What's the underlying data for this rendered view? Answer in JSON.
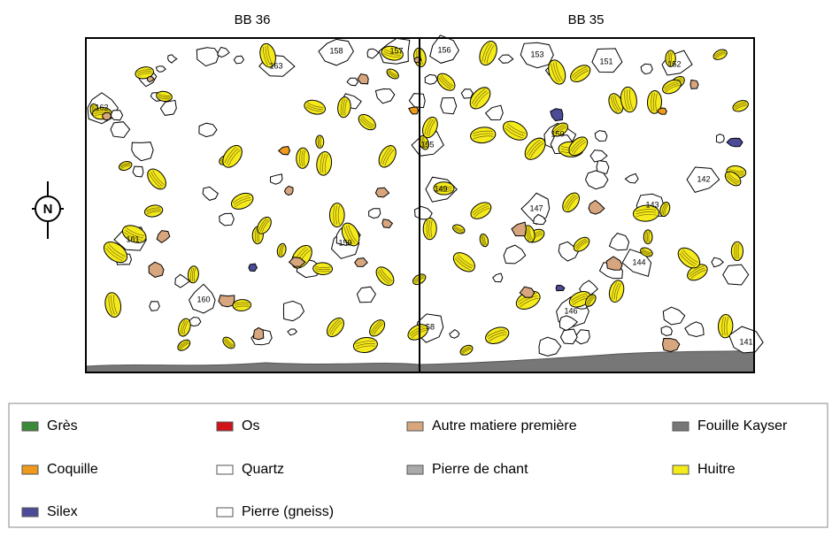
{
  "headers": [
    "BB 36",
    "BB 35"
  ],
  "compass": "N",
  "stone_labels": [
    "163",
    "158",
    "157",
    "162",
    "161",
    "160",
    "159",
    "156",
    "153",
    "151",
    "152",
    "155",
    "150",
    "149",
    "147",
    "143",
    "142",
    "144",
    "146",
    "58",
    "141"
  ],
  "legend": [
    {
      "label": "Grès",
      "color": "#3a8a3a"
    },
    {
      "label": "Os",
      "color": "#d0121b"
    },
    {
      "label": "Autre matiere première",
      "color": "#d7a67e"
    },
    {
      "label": "Fouille Kayser",
      "color": "#777777"
    },
    {
      "label": "Coquille",
      "color": "#ef9a1c"
    },
    {
      "label": "Quartz",
      "color": "#ffffff"
    },
    {
      "label": "Pierre de chant",
      "color": "#aaaaaa"
    },
    {
      "label": "Huitre",
      "color": "#f4ea1c"
    },
    {
      "label": "Silex",
      "color": "#4b4b98"
    },
    {
      "label": "Pierre (gneiss)",
      "color": "#ffffff"
    }
  ]
}
